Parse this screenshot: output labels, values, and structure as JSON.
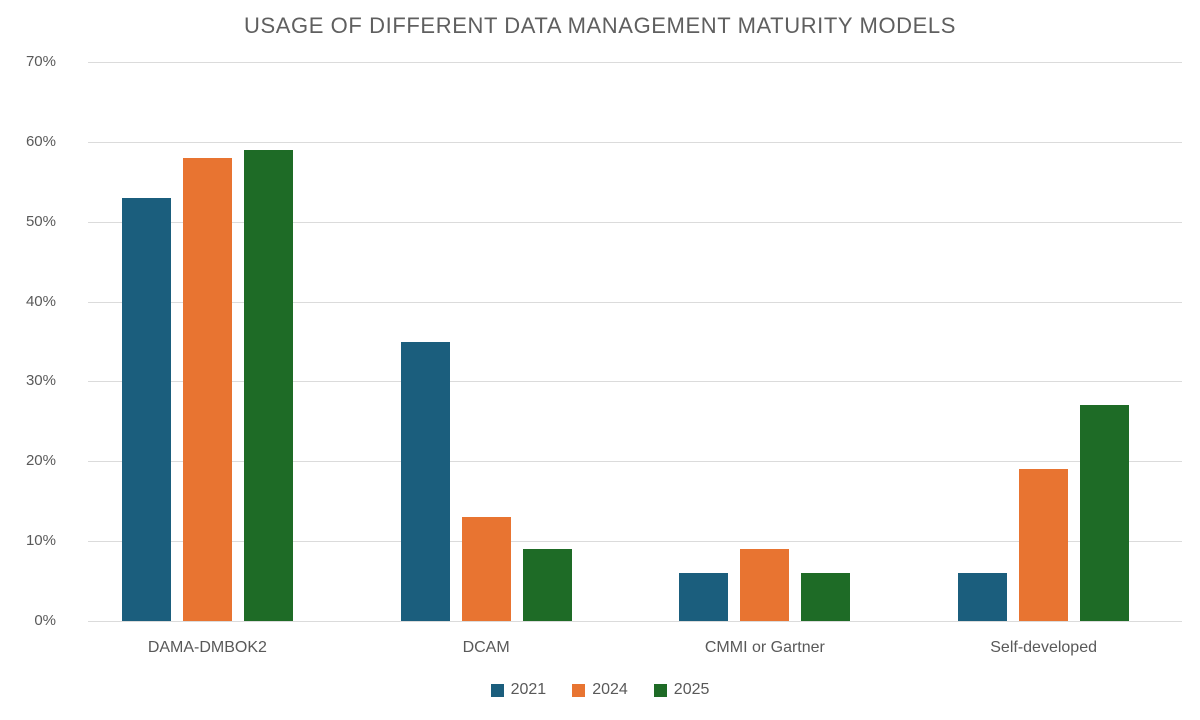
{
  "title": "USAGE OF DIFFERENT DATA MANAGEMENT MATURITY MODELS",
  "chart_data": {
    "type": "bar",
    "title": "USAGE OF DIFFERENT DATA MANAGEMENT MATURITY MODELS",
    "categories": [
      "DAMA-DMBOK2",
      "DCAM",
      "CMMI or Gartner",
      "Self-developed"
    ],
    "series": [
      {
        "name": "2021",
        "color": "#1B5E7D",
        "values": [
          53,
          35,
          6,
          6
        ]
      },
      {
        "name": "2024",
        "color": "#E87431",
        "values": [
          58,
          13,
          9,
          19
        ]
      },
      {
        "name": "2025",
        "color": "#1E6B26",
        "values": [
          59,
          9,
          6,
          27
        ]
      }
    ],
    "xlabel": "",
    "ylabel": "",
    "ylim": [
      0,
      70
    ],
    "yticks": [
      "0%",
      "10%",
      "20%",
      "30%",
      "40%",
      "50%",
      "60%",
      "70%"
    ],
    "grid": true,
    "legend_position": "bottom",
    "colors": {
      "title_text": "#5f5f5f",
      "axis_text": "#595959",
      "gridline": "#dbdbdb",
      "background": "#ffffff"
    }
  }
}
